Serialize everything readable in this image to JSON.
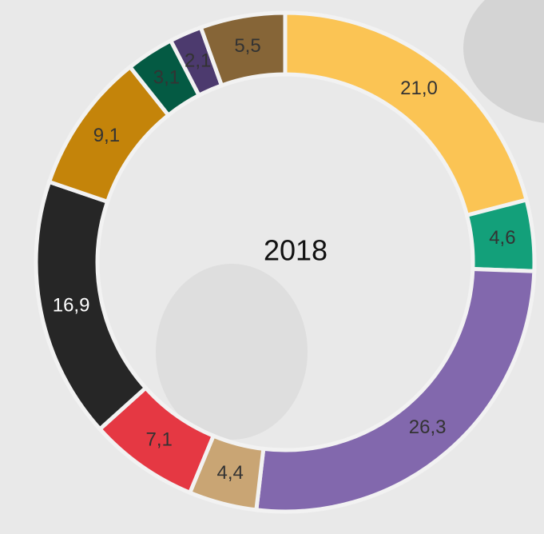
{
  "chart_data": {
    "type": "donut",
    "center_label": "2018",
    "values": [
      21.0,
      4.6,
      26.3,
      4.4,
      7.1,
      16.9,
      9.1,
      3.1,
      2.1,
      5.5
    ],
    "value_labels": [
      "21,0",
      "4,6",
      "26,3",
      "4,4",
      "7,1",
      "16,9",
      "9,1",
      "3,1",
      "2,1",
      "5,5"
    ],
    "colors": [
      "#fbc454",
      "#13a07a",
      "#8268ad",
      "#c9a574",
      "#e53843",
      "#262626",
      "#c4840a",
      "#045a43",
      "#4c3a6e",
      "#866537"
    ]
  }
}
